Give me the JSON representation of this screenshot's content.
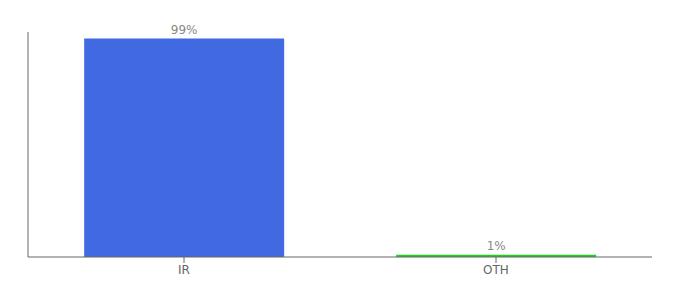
{
  "chart_data": {
    "type": "bar",
    "categories": [
      "IR",
      "OTH"
    ],
    "values": [
      99,
      1
    ],
    "colors": [
      "#4169e1",
      "#22cc22"
    ],
    "value_labels": [
      "99%",
      "1%"
    ],
    "data_labels": true,
    "ylim": [
      0,
      102
    ],
    "tick_labels": "x"
  }
}
